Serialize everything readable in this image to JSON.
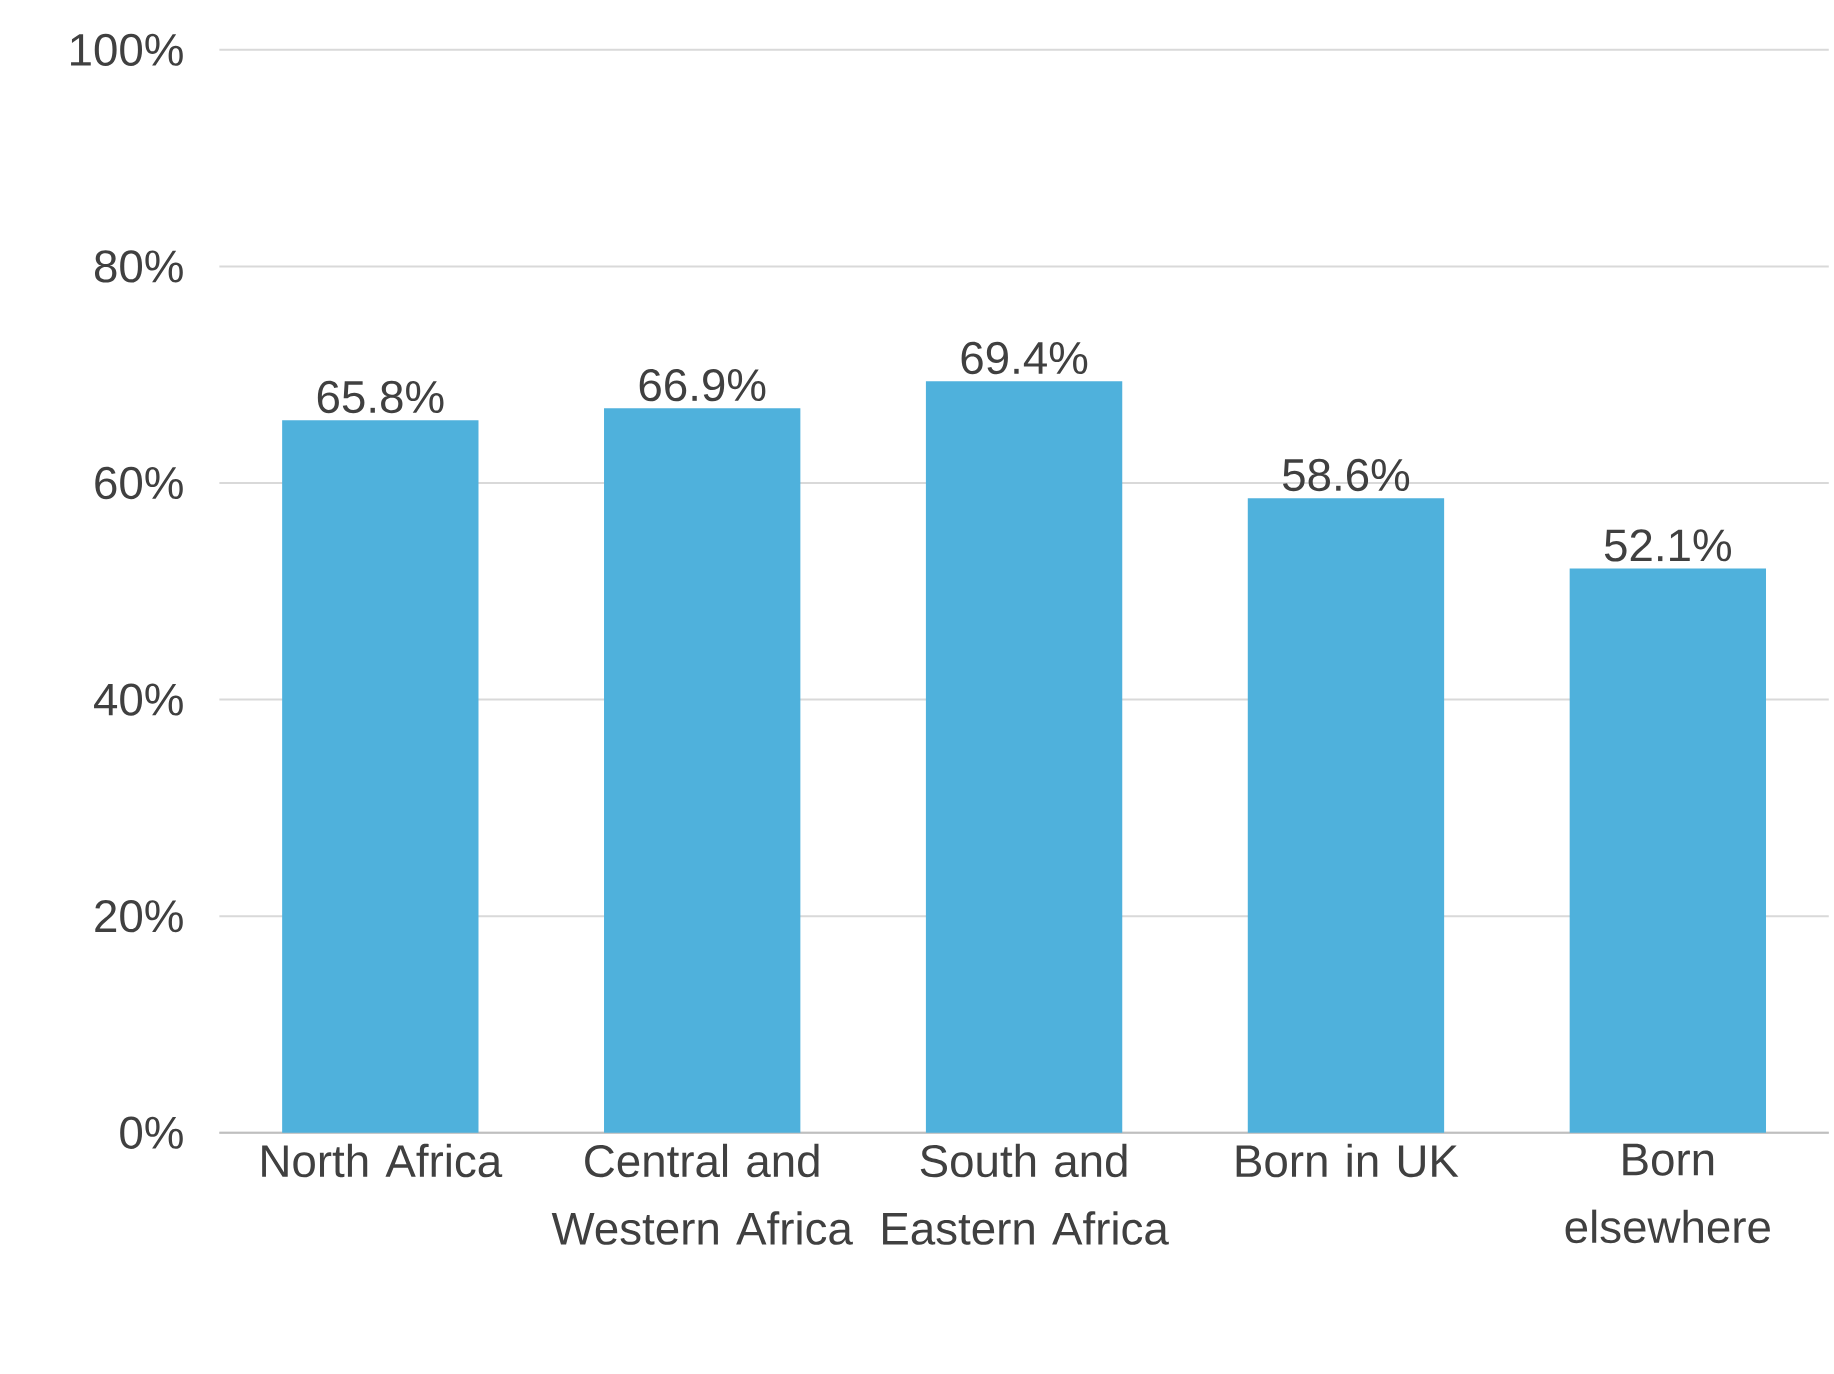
{
  "chart_data": {
    "type": "bar",
    "categories": [
      "North Africa",
      "Central and Western Africa",
      "South and Eastern Africa",
      "Born in UK",
      "Born elsewhere"
    ],
    "values": [
      65.8,
      66.9,
      69.4,
      58.6,
      52.1
    ],
    "value_labels": [
      "65.8%",
      "66.9%",
      "69.4%",
      "58.6%",
      "52.1%"
    ],
    "color": "#4fb1dc",
    "ylim": [
      0,
      100
    ],
    "yticks": [
      {
        "value": 0,
        "label": "0%"
      },
      {
        "value": 20,
        "label": "20%"
      },
      {
        "value": 40,
        "label": "40%"
      },
      {
        "value": 60,
        "label": "60%"
      },
      {
        "value": 80,
        "label": "80%"
      },
      {
        "value": 100,
        "label": "100%"
      }
    ],
    "grid": "y"
  }
}
